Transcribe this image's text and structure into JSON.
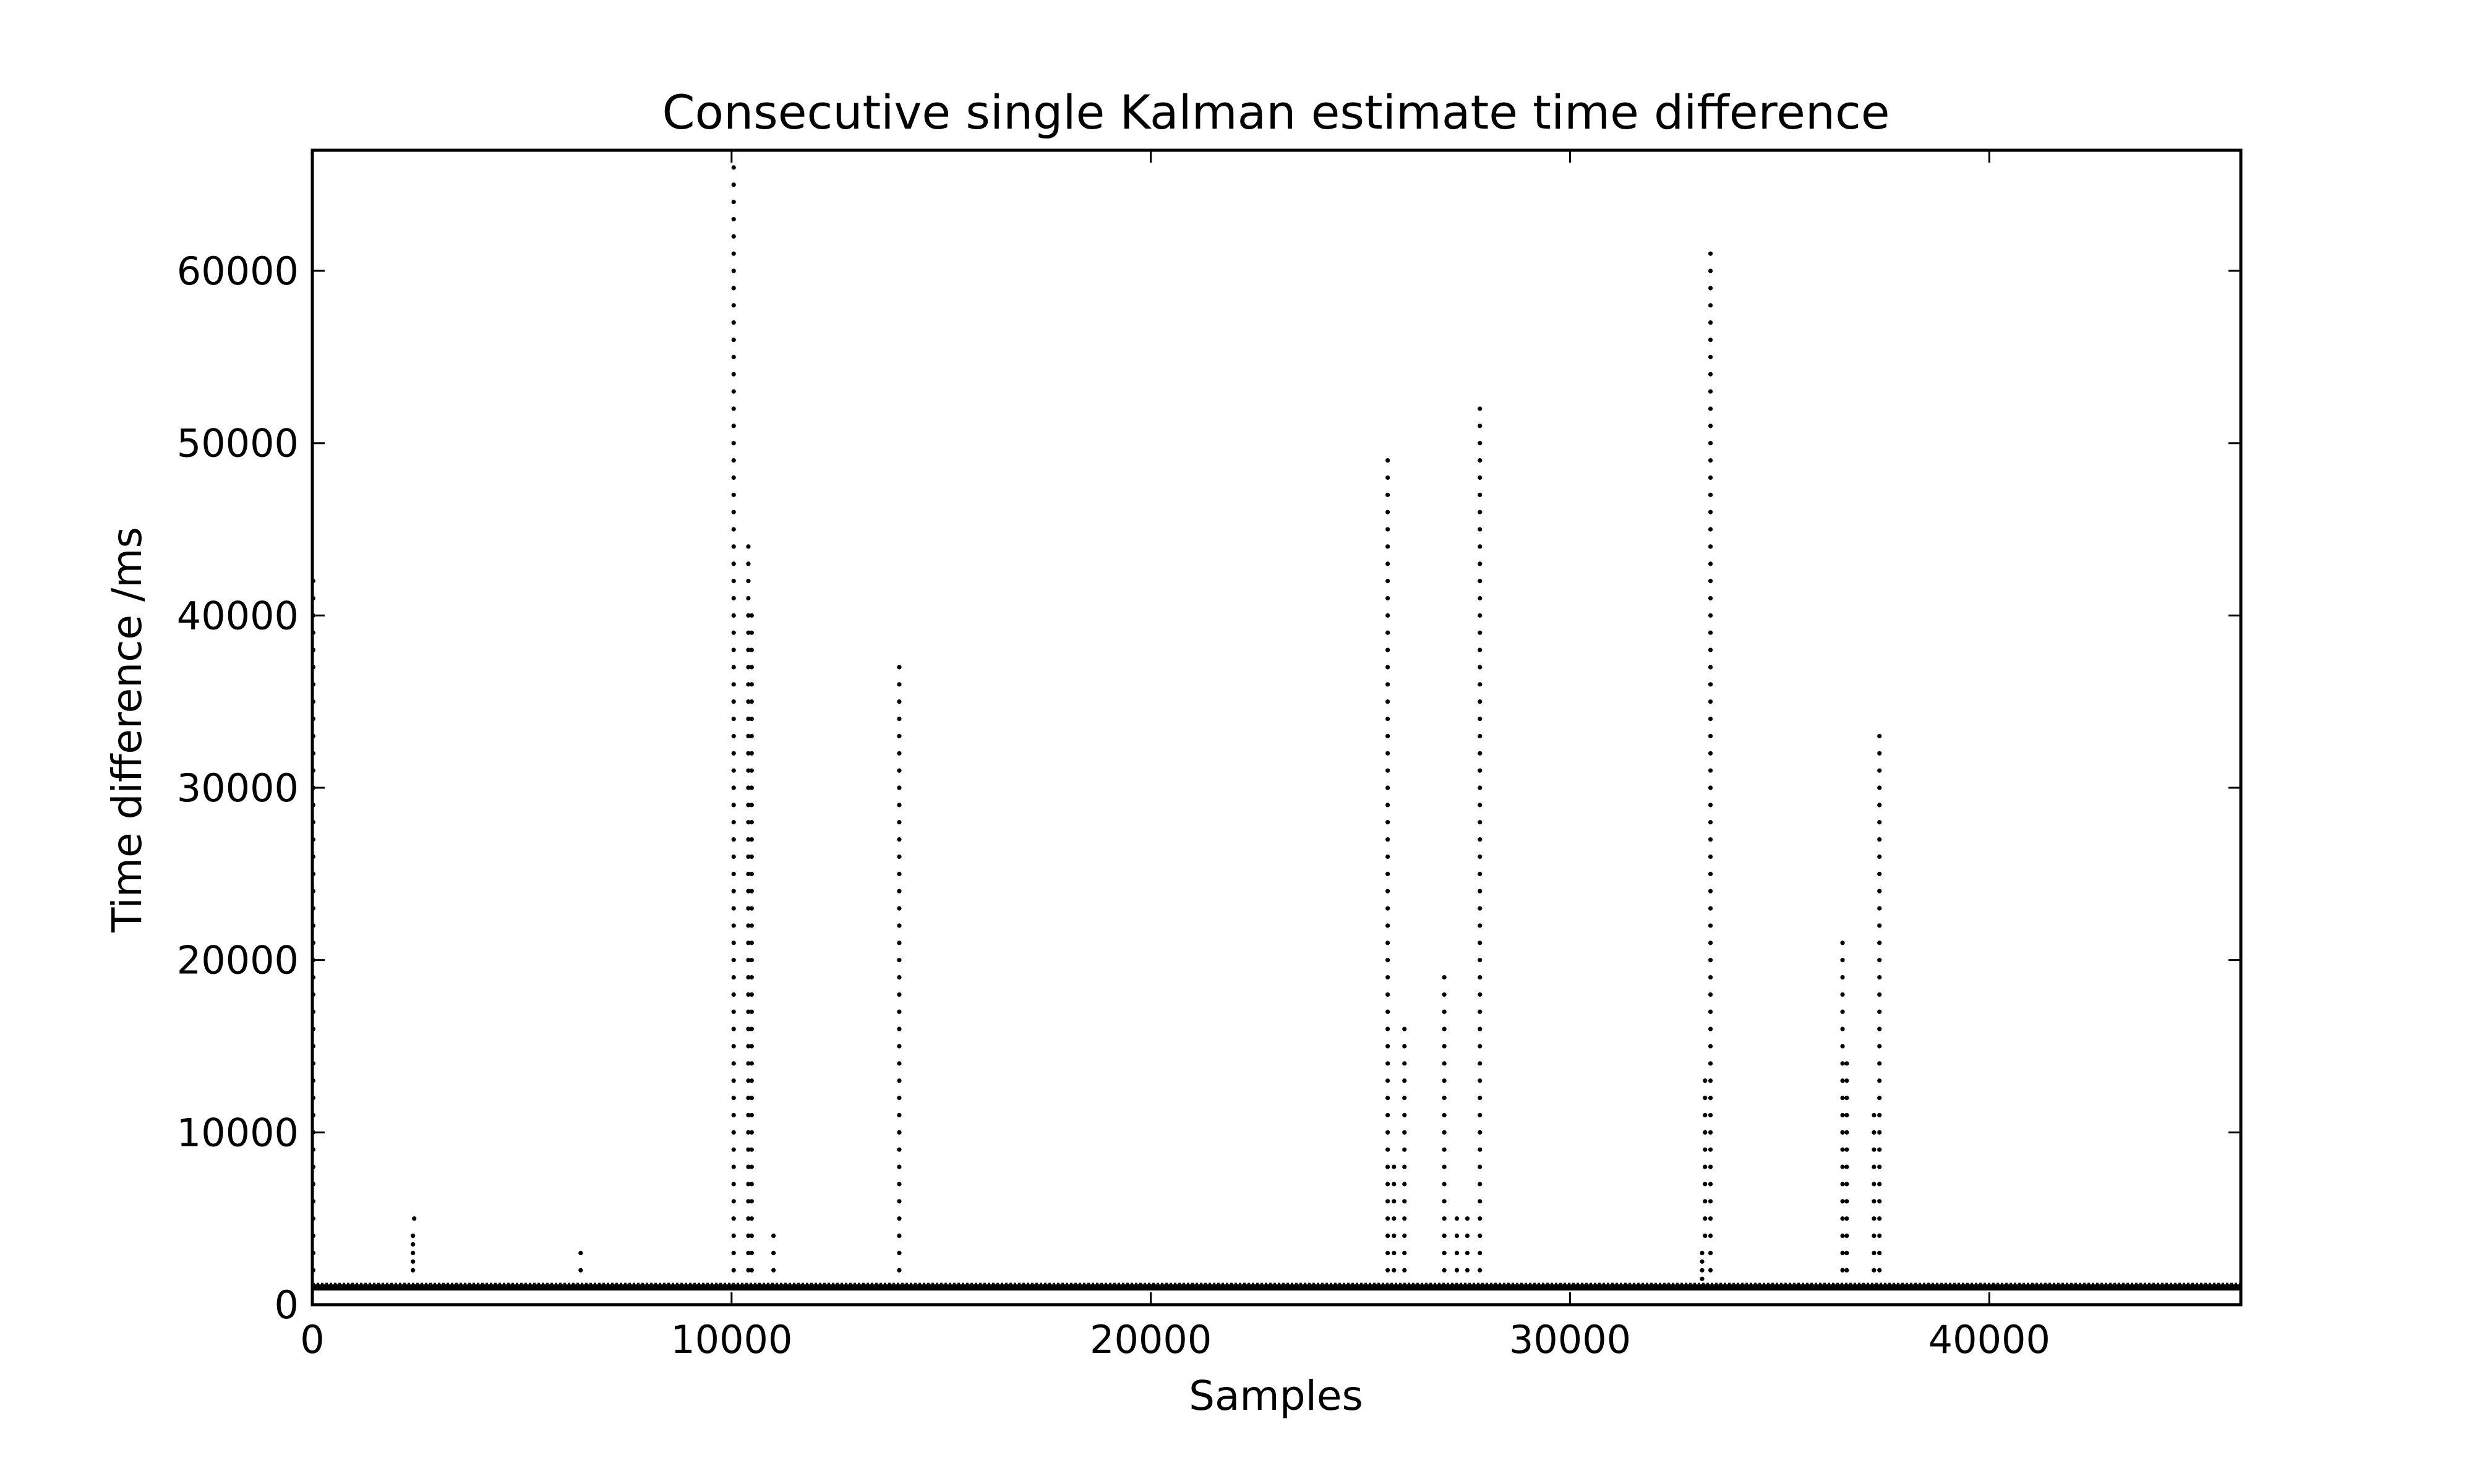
{
  "chart_data": {
    "type": "scatter",
    "title": "Consecutive single Kalman estimate time difference",
    "xlabel": "Samples",
    "ylabel": "Time difference /ms",
    "xlim": [
      0,
      46000
    ],
    "ylim": [
      0,
      67000
    ],
    "xticks": [
      0,
      10000,
      20000,
      30000,
      40000
    ],
    "yticks": [
      0,
      10000,
      20000,
      30000,
      40000,
      50000,
      60000
    ],
    "grid": false,
    "legend": "none",
    "marker_color": "#000000",
    "baseline": {
      "y": 1000,
      "x_from": 0,
      "x_to": 46000
    },
    "spikes": [
      {
        "x": 20,
        "y_from": 2000,
        "y_to": 42000,
        "step": 1000
      },
      {
        "x": 2400,
        "y_from": 2000,
        "y_to": 4000,
        "step": 500
      },
      {
        "x": 2430,
        "y_from": 5000,
        "y_to": 5000,
        "step": 1000
      },
      {
        "x": 6400,
        "y_from": 2000,
        "y_to": 3000,
        "step": 1000
      },
      {
        "x": 10050,
        "y_from": 2000,
        "y_to": 66000,
        "step": 1000
      },
      {
        "x": 10400,
        "y_from": 2000,
        "y_to": 44000,
        "step": 1000
      },
      {
        "x": 10480,
        "y_from": 2000,
        "y_to": 40000,
        "step": 1000
      },
      {
        "x": 11000,
        "y_from": 2000,
        "y_to": 4000,
        "step": 1000
      },
      {
        "x": 14000,
        "y_from": 2000,
        "y_to": 37000,
        "step": 1000
      },
      {
        "x": 25650,
        "y_from": 2000,
        "y_to": 49000,
        "step": 1000
      },
      {
        "x": 25800,
        "y_from": 2000,
        "y_to": 8000,
        "step": 1000
      },
      {
        "x": 26050,
        "y_from": 2000,
        "y_to": 16000,
        "step": 1000
      },
      {
        "x": 27000,
        "y_from": 2000,
        "y_to": 19000,
        "step": 1000
      },
      {
        "x": 27300,
        "y_from": 2000,
        "y_to": 5000,
        "step": 1000
      },
      {
        "x": 27550,
        "y_from": 2000,
        "y_to": 5000,
        "step": 1000
      },
      {
        "x": 27850,
        "y_from": 2000,
        "y_to": 52000,
        "step": 1000
      },
      {
        "x": 33150,
        "y_from": 1500,
        "y_to": 3000,
        "step": 500
      },
      {
        "x": 33220,
        "y_from": 4000,
        "y_to": 13000,
        "step": 1000
      },
      {
        "x": 33350,
        "y_from": 2000,
        "y_to": 61000,
        "step": 1000
      },
      {
        "x": 36500,
        "y_from": 2000,
        "y_to": 21000,
        "step": 1000
      },
      {
        "x": 36600,
        "y_from": 2000,
        "y_to": 14000,
        "step": 1000
      },
      {
        "x": 37250,
        "y_from": 2000,
        "y_to": 11000,
        "step": 1000
      },
      {
        "x": 37380,
        "y_from": 2000,
        "y_to": 33000,
        "step": 1000
      }
    ]
  }
}
